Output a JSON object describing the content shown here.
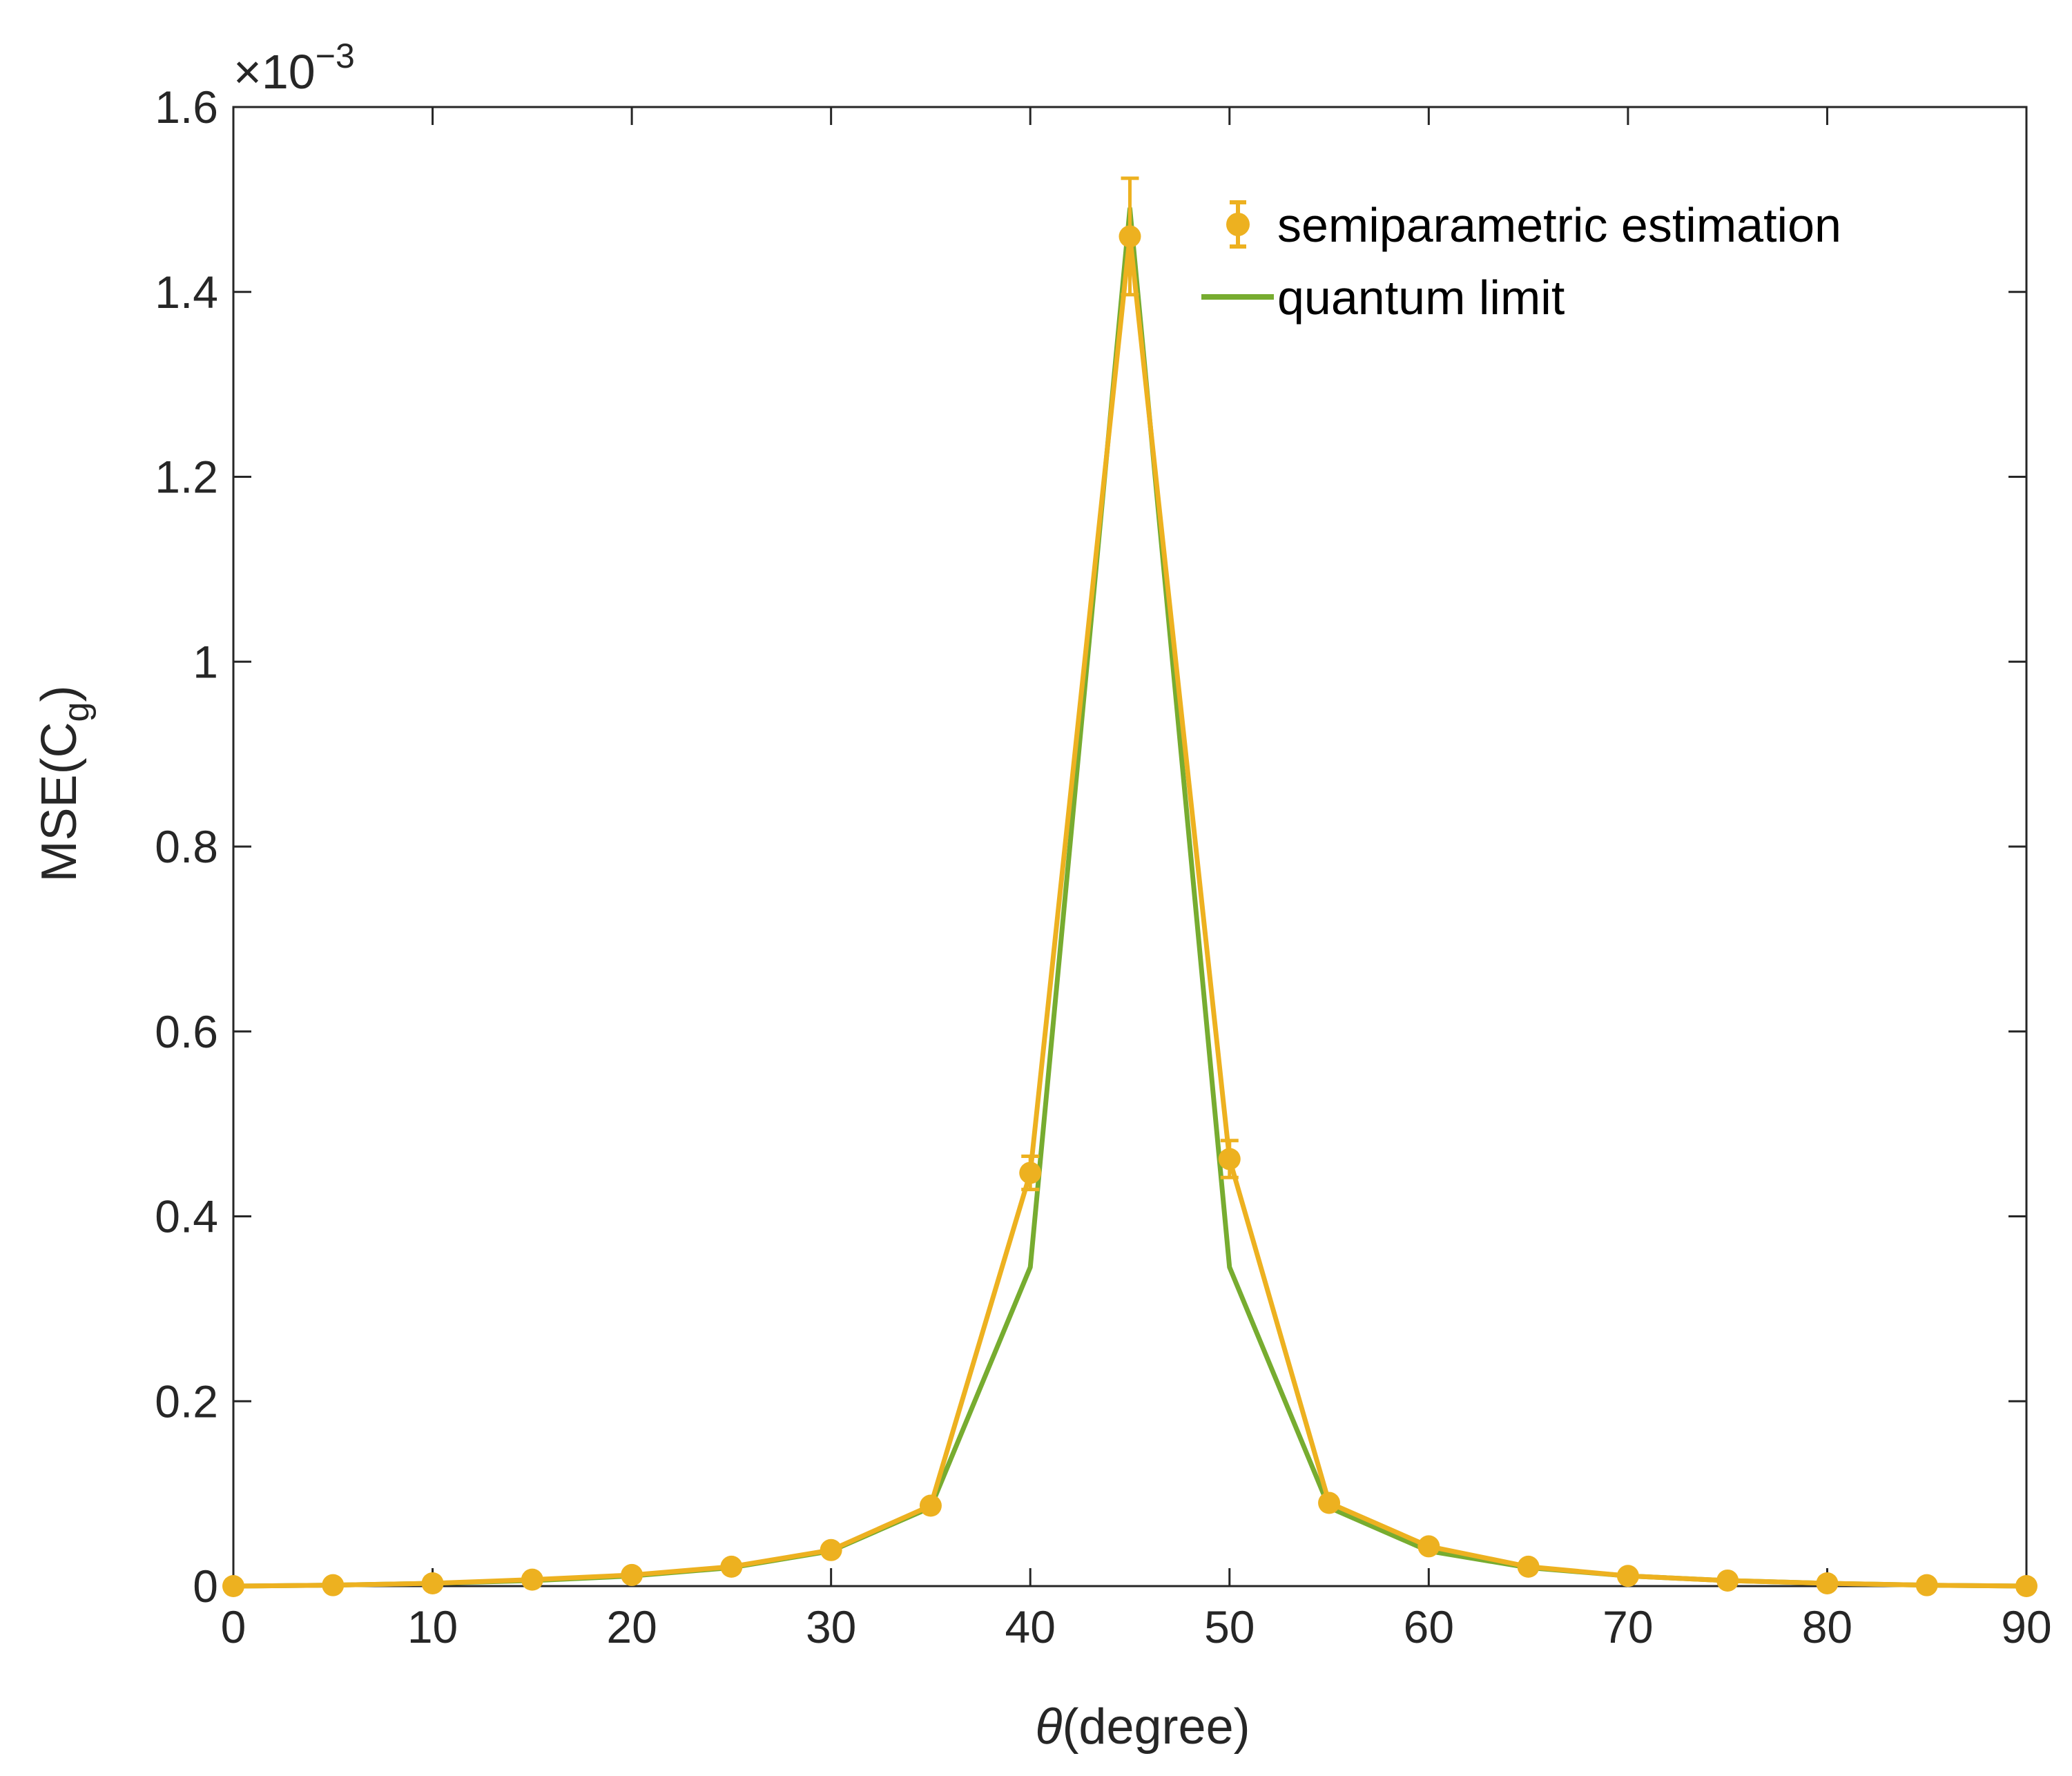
{
  "colors": {
    "axis": "#262626",
    "semiparametric": "#EDB120",
    "quantum": "#77AC30"
  },
  "chart_data": {
    "type": "line",
    "xlabel_symbol": "θ",
    "xlabel_text": "(degree)",
    "ylabel_main": "MSE(C",
    "ylabel_sub": "g",
    "ylabel_close": ")",
    "exponent_prefix": "×10",
    "exponent_power": "−3",
    "xlim": [
      0,
      90
    ],
    "ylim": [
      0,
      1.6
    ],
    "y_scale_factor": 0.001,
    "xticks": [
      0,
      10,
      20,
      30,
      40,
      50,
      60,
      70,
      80,
      90
    ],
    "xtick_labels": [
      "0",
      "10",
      "20",
      "30",
      "40",
      "50",
      "60",
      "70",
      "80",
      "90"
    ],
    "yticks": [
      0,
      0.2,
      0.4,
      0.6,
      0.8,
      1.0,
      1.2,
      1.4,
      1.6
    ],
    "ytick_labels": [
      "0",
      "0.2",
      "0.4",
      "0.6",
      "0.8",
      "1",
      "1.2",
      "1.4",
      "1.6"
    ],
    "x": [
      0,
      5,
      10,
      15,
      20,
      25,
      30,
      35,
      40,
      45,
      50,
      55,
      60,
      65,
      70,
      75,
      80,
      85,
      90
    ],
    "series": [
      {
        "name": "semiparametric estimation",
        "style": "errorbar",
        "color": "#EDB120",
        "values": [
          0.0,
          0.001,
          0.003,
          0.007,
          0.012,
          0.021,
          0.039,
          0.087,
          0.447,
          1.46,
          0.462,
          0.09,
          0.043,
          0.021,
          0.011,
          0.006,
          0.003,
          0.001,
          0.0
        ],
        "errors": [
          0.001,
          0.001,
          0.001,
          0.001,
          0.002,
          0.002,
          0.003,
          0.004,
          0.018,
          0.063,
          0.02,
          0.004,
          0.003,
          0.002,
          0.001,
          0.001,
          0.001,
          0.001,
          0.001
        ]
      },
      {
        "name": "quantum limit",
        "style": "line",
        "color": "#77AC30",
        "values": [
          0.0,
          0.001,
          0.003,
          0.006,
          0.011,
          0.02,
          0.038,
          0.085,
          0.345,
          1.49,
          0.345,
          0.085,
          0.038,
          0.02,
          0.011,
          0.006,
          0.003,
          0.001,
          0.0
        ]
      }
    ],
    "legend_position": "top-right",
    "grid": false
  }
}
